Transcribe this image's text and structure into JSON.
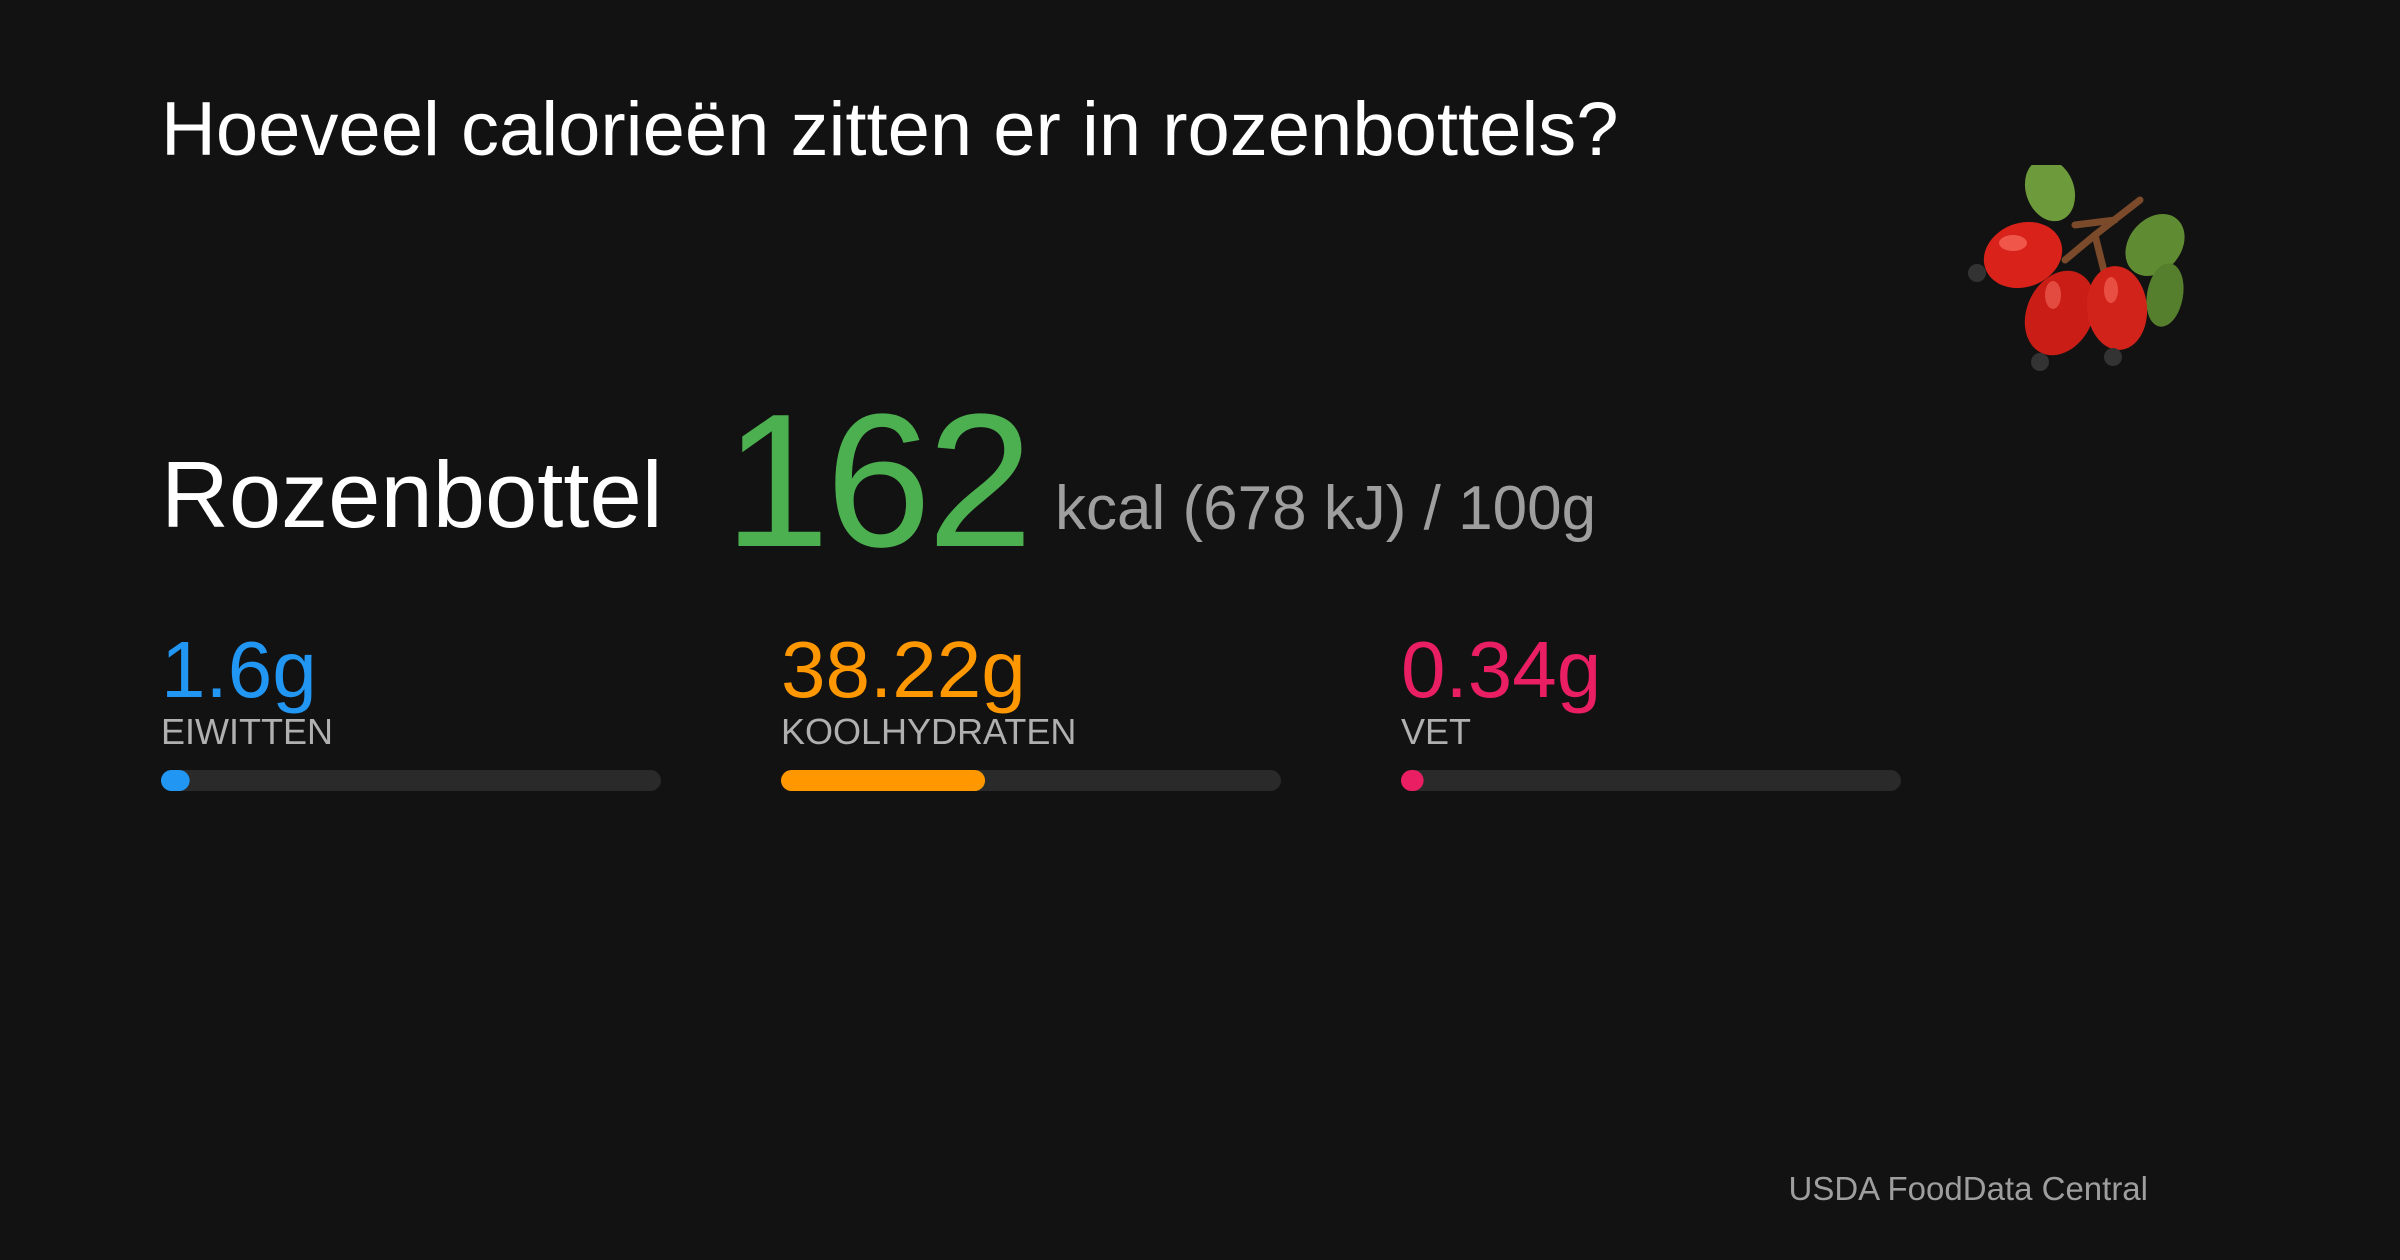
{
  "header": {
    "title": "Hoeveel calorieën zitten er in rozenbottels?"
  },
  "food": {
    "name": "Rozenbottel",
    "calories": 162,
    "unit": "kcal (678 kJ) / 100g"
  },
  "macros": {
    "range": [
      0,
      100
    ],
    "items": [
      {
        "name": "EIWITTEN",
        "value": 1.6,
        "value_label": "1.6g",
        "color": "#2196f3"
      },
      {
        "name": "KOOLHYDRATEN",
        "value": 38.22,
        "value_label": "38.22g",
        "color": "#ff9800"
      },
      {
        "name": "VET",
        "value": 0.34,
        "value_label": "0.34g",
        "color": "#e91e63"
      }
    ]
  },
  "footer": {
    "source": "USDA FoodData Central"
  }
}
